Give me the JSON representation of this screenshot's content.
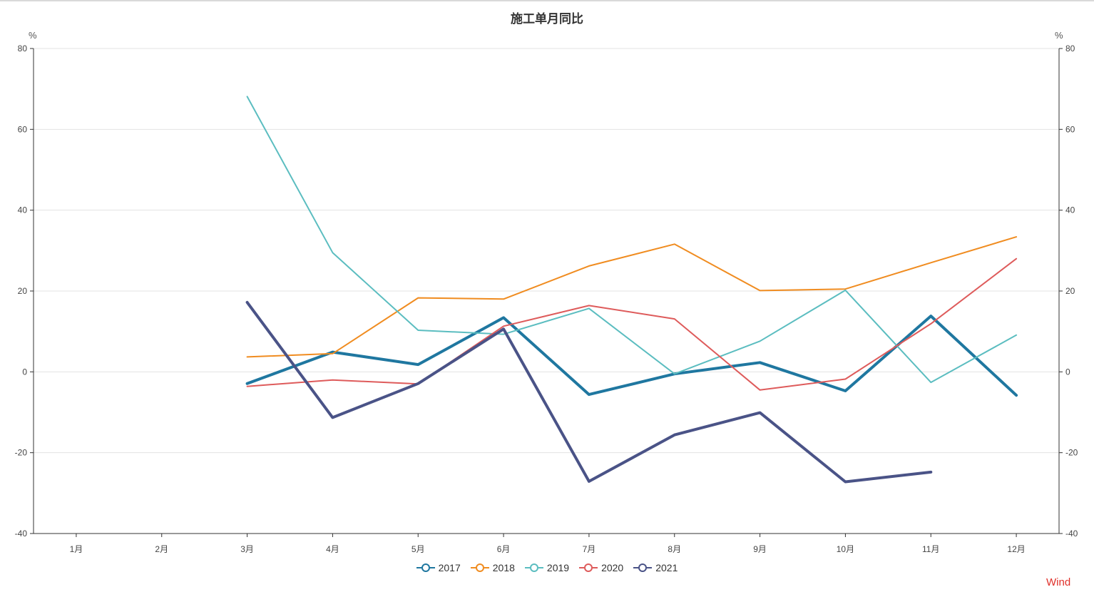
{
  "chart_data": {
    "type": "line",
    "title": "施工单月同比",
    "ylabel_left": "%",
    "ylabel_right": "%",
    "categories": [
      "1月",
      "2月",
      "3月",
      "4月",
      "5月",
      "6月",
      "7月",
      "8月",
      "9月",
      "10月",
      "11月",
      "12月"
    ],
    "ylim": [
      -40,
      80
    ],
    "yticks": [
      -40,
      -20,
      0,
      20,
      40,
      60,
      80
    ],
    "grid": true,
    "legend_position": "bottom-center",
    "series": [
      {
        "name": "2017",
        "color": "#1f77a0",
        "width": 4,
        "values": [
          null,
          null,
          -2.9,
          4.9,
          1.8,
          13.4,
          -5.6,
          -0.5,
          2.3,
          -4.7,
          13.8,
          -5.8
        ]
      },
      {
        "name": "2018",
        "color": "#f08c20",
        "width": 2,
        "values": [
          null,
          null,
          3.7,
          4.5,
          18.3,
          18.0,
          26.2,
          31.6,
          20.1,
          20.5,
          27.0,
          33.4
        ]
      },
      {
        "name": "2019",
        "color": "#5bbdc0",
        "width": 2,
        "values": [
          null,
          null,
          68.1,
          29.5,
          10.3,
          9.3,
          15.7,
          -0.5,
          7.6,
          20.2,
          -2.6,
          9.1
        ]
      },
      {
        "name": "2020",
        "color": "#de5b5b",
        "width": 2,
        "values": [
          null,
          null,
          -3.6,
          -2.0,
          -3.0,
          11.3,
          16.4,
          13.1,
          -4.5,
          -1.8,
          11.9,
          28.0
        ]
      },
      {
        "name": "2021",
        "color": "#4a5387",
        "width": 4,
        "values": [
          null,
          null,
          17.2,
          -11.3,
          -2.9,
          10.6,
          -27.1,
          -15.6,
          -10.1,
          -27.2,
          -24.8,
          null
        ]
      }
    ]
  },
  "watermark": "Wind"
}
